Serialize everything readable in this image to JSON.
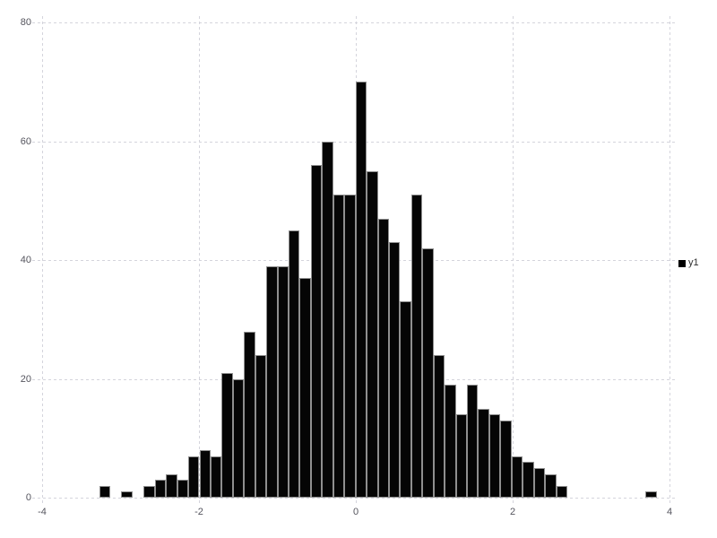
{
  "chart": {
    "background_color": "#ffffff",
    "grid_color": "#d4d4dc",
    "axis_label_color": "#55555e",
    "bar_color": "#050505",
    "bar_outline_color": "#8f8f8f",
    "legend": {
      "label": "y1",
      "marker_color": "#000000"
    }
  },
  "chart_data": {
    "type": "bar",
    "subtype": "histogram",
    "title": "",
    "xlabel": "",
    "ylabel": "",
    "series": [
      {
        "name": "y1",
        "color": "#000000",
        "bin_start": -3.27,
        "bin_width": 0.142,
        "counts": [
          2,
          0,
          1,
          0,
          2,
          3,
          4,
          3,
          7,
          8,
          7,
          21,
          20,
          28,
          24,
          39,
          39,
          45,
          37,
          56,
          60,
          51,
          51,
          70,
          55,
          47,
          43,
          33,
          51,
          42,
          24,
          19,
          14,
          19,
          15,
          14,
          13,
          7,
          6,
          5,
          4,
          2,
          0,
          0,
          0,
          0,
          0,
          0,
          0,
          1
        ]
      }
    ],
    "x_ticks": [
      -4,
      -2,
      0,
      2,
      4
    ],
    "y_ticks": [
      0,
      20,
      40,
      60,
      80
    ],
    "xlim": [
      -4,
      4
    ],
    "ylim": [
      0,
      80
    ],
    "grid": true,
    "grid_style": "dashed",
    "legend_position": "right"
  }
}
